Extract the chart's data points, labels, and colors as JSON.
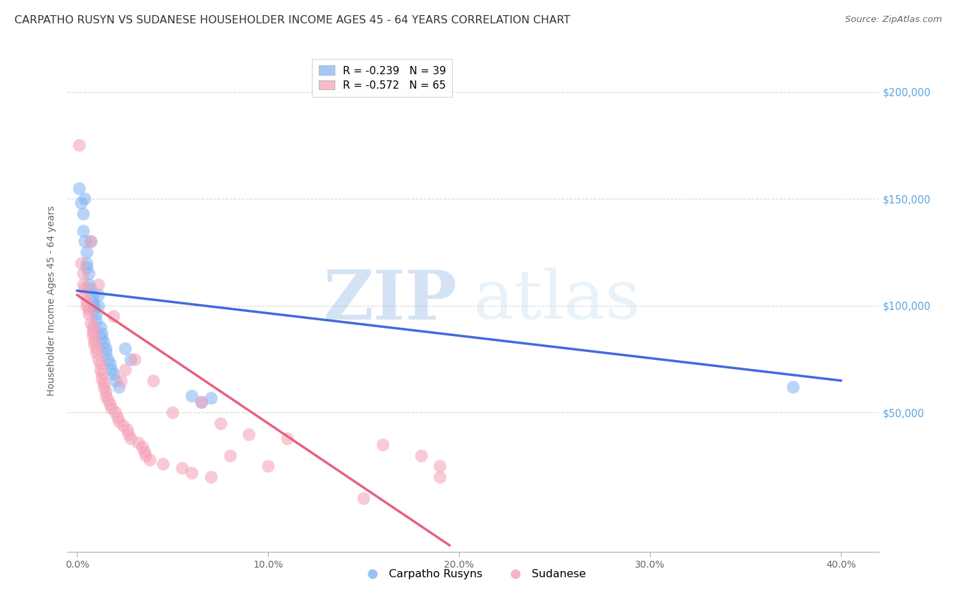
{
  "title": "CARPATHO RUSYN VS SUDANESE HOUSEHOLDER INCOME AGES 45 - 64 YEARS CORRELATION CHART",
  "source": "Source: ZipAtlas.com",
  "xlabel_ticks": [
    "0.0%",
    "10.0%",
    "20.0%",
    "30.0%",
    "40.0%"
  ],
  "xlabel_vals": [
    0.0,
    0.1,
    0.2,
    0.3,
    0.4
  ],
  "ylabel": "Householder Income Ages 45 - 64 years",
  "ylabel_ticks": [
    "$50,000",
    "$100,000",
    "$150,000",
    "$200,000"
  ],
  "ylabel_vals": [
    50000,
    100000,
    150000,
    200000
  ],
  "xlim": [
    -0.005,
    0.42
  ],
  "ylim": [
    -15000,
    220000
  ],
  "legend_blue_label": "R = -0.239   N = 39",
  "legend_pink_label": "R = -0.572   N = 65",
  "legend_blue_group": "Carpatho Rusyns",
  "legend_pink_group": "Sudanese",
  "blue_color": "#7EB3F5",
  "pink_color": "#F5A0B5",
  "blue_line_color": "#4169E1",
  "pink_line_color": "#E8607A",
  "right_axis_color": "#5BA3E0",
  "watermark_zip": "ZIP",
  "watermark_atlas": "atlas",
  "blue_scatter_x": [
    0.002,
    0.003,
    0.003,
    0.004,
    0.004,
    0.005,
    0.005,
    0.005,
    0.006,
    0.006,
    0.007,
    0.007,
    0.008,
    0.008,
    0.009,
    0.009,
    0.01,
    0.01,
    0.011,
    0.011,
    0.012,
    0.013,
    0.013,
    0.014,
    0.015,
    0.015,
    0.016,
    0.017,
    0.018,
    0.019,
    0.02,
    0.022,
    0.025,
    0.028,
    0.06,
    0.065,
    0.07,
    0.375,
    0.001
  ],
  "blue_scatter_y": [
    148000,
    143000,
    135000,
    150000,
    130000,
    125000,
    120000,
    118000,
    115000,
    110000,
    130000,
    108000,
    105000,
    102000,
    100000,
    98000,
    96000,
    93000,
    105000,
    100000,
    90000,
    87000,
    85000,
    83000,
    80000,
    78000,
    75000,
    73000,
    70000,
    68000,
    65000,
    62000,
    80000,
    75000,
    58000,
    55000,
    57000,
    62000,
    155000
  ],
  "pink_scatter_x": [
    0.001,
    0.002,
    0.003,
    0.003,
    0.004,
    0.004,
    0.005,
    0.005,
    0.006,
    0.006,
    0.007,
    0.007,
    0.008,
    0.008,
    0.008,
    0.009,
    0.009,
    0.01,
    0.01,
    0.011,
    0.011,
    0.012,
    0.012,
    0.013,
    0.013,
    0.014,
    0.014,
    0.015,
    0.015,
    0.016,
    0.017,
    0.018,
    0.019,
    0.02,
    0.021,
    0.022,
    0.023,
    0.024,
    0.025,
    0.026,
    0.027,
    0.028,
    0.03,
    0.032,
    0.034,
    0.035,
    0.036,
    0.038,
    0.04,
    0.045,
    0.05,
    0.055,
    0.06,
    0.065,
    0.07,
    0.075,
    0.08,
    0.09,
    0.1,
    0.11,
    0.15,
    0.16,
    0.18,
    0.19,
    0.19
  ],
  "pink_scatter_y": [
    175000,
    120000,
    115000,
    110000,
    108000,
    105000,
    102000,
    100000,
    98000,
    96000,
    130000,
    92000,
    90000,
    88000,
    86000,
    84000,
    82000,
    80000,
    78000,
    110000,
    75000,
    73000,
    70000,
    68000,
    66000,
    64000,
    62000,
    60000,
    58000,
    56000,
    54000,
    52000,
    95000,
    50000,
    48000,
    46000,
    65000,
    44000,
    70000,
    42000,
    40000,
    38000,
    75000,
    36000,
    34000,
    32000,
    30000,
    28000,
    65000,
    26000,
    50000,
    24000,
    22000,
    55000,
    20000,
    45000,
    30000,
    40000,
    25000,
    38000,
    10000,
    35000,
    30000,
    20000,
    25000
  ],
  "blue_line_x": [
    0.0,
    0.4
  ],
  "blue_line_y": [
    107000,
    65000
  ],
  "pink_line_x": [
    0.0,
    0.195
  ],
  "pink_line_y": [
    105000,
    -12000
  ],
  "grid_color": "#d8d8d8",
  "background_color": "#ffffff",
  "title_fontsize": 11.5,
  "source_fontsize": 9.5
}
